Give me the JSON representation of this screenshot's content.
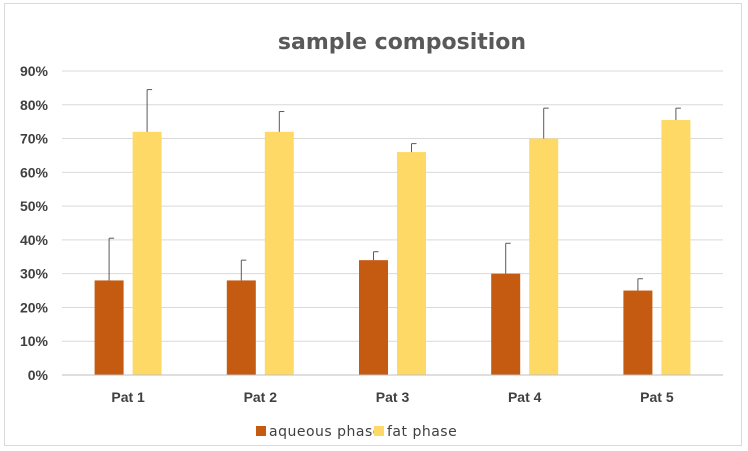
{
  "chart_data": {
    "type": "bar",
    "title": "sample composition",
    "xlabel": "",
    "ylabel": "",
    "categories": [
      "Pat 1",
      "Pat 2",
      "Pat 3",
      "Pat 4",
      "Pat 5"
    ],
    "series": [
      {
        "name": "aqueous phase",
        "color": "#c55a11",
        "values": [
          0.28,
          0.28,
          0.34,
          0.3,
          0.25
        ],
        "error": [
          0.125,
          0.06,
          0.025,
          0.09,
          0.035
        ]
      },
      {
        "name": "fat phase",
        "color": "#ffd966",
        "values": [
          0.72,
          0.72,
          0.66,
          0.7,
          0.755
        ],
        "error": [
          0.125,
          0.06,
          0.025,
          0.09,
          0.035
        ]
      }
    ],
    "ylim": [
      0,
      0.9
    ],
    "yticks": [
      "0%",
      "10%",
      "20%",
      "30%",
      "40%",
      "50%",
      "60%",
      "70%",
      "80%",
      "90%"
    ],
    "grid": true,
    "legend_position": "bottom"
  }
}
